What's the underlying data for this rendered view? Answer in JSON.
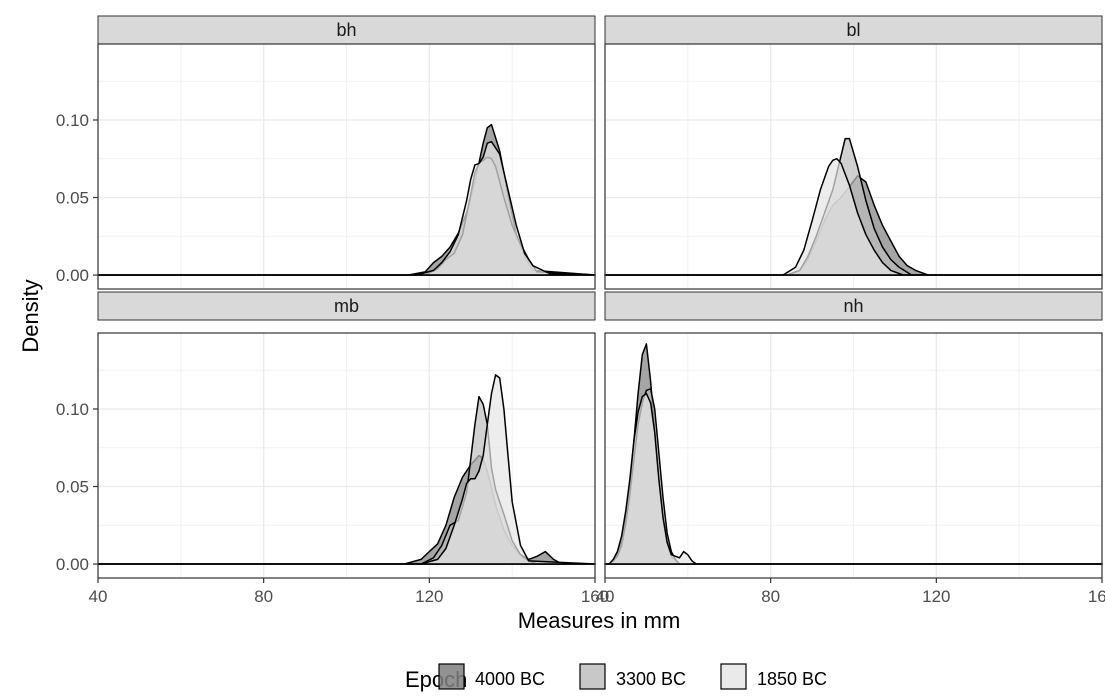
{
  "chart_data": {
    "type": "area",
    "facet_layout": "2x2",
    "xlabel": "Measures in mm",
    "ylabel": "Density",
    "xlim": [
      40,
      160
    ],
    "ylim": [
      -0.009,
      0.149
    ],
    "x_ticks": [
      40,
      80,
      120,
      160
    ],
    "x_tick_labels": [
      "40",
      "80",
      "120",
      "160"
    ],
    "y_ticks": [
      0.0,
      0.05,
      0.1
    ],
    "y_tick_labels": [
      "0.00",
      "0.05",
      "0.10"
    ],
    "grid": true,
    "legend": {
      "title": "Epoch",
      "position": "bottom",
      "entries": [
        {
          "name": "4000 BC",
          "color": "#7f7f7f"
        },
        {
          "name": "3300 BC",
          "color": "#bebebe"
        },
        {
          "name": "1850 BC",
          "color": "#e6e6e6"
        }
      ]
    },
    "panels": [
      {
        "label": "bh",
        "series": [
          {
            "name": "4000 BC",
            "x": [
              40,
              115,
              119,
              121,
              123,
              125,
              127,
              129,
              131,
              133,
              134,
              135,
              137,
              139,
              141,
              143,
              145,
              160
            ],
            "y": [
              0,
              0,
              0.002,
              0.008,
              0.012,
              0.018,
              0.027,
              0.04,
              0.06,
              0.085,
              0.095,
              0.097,
              0.08,
              0.052,
              0.026,
              0.012,
              0.003,
              0
            ]
          },
          {
            "name": "3300 BC",
            "x": [
              40,
              119,
              122,
              124,
              126,
              128,
              130,
              131,
              132,
              133,
              134,
              135,
              136,
              138,
              140,
              142,
              144,
              146,
              160
            ],
            "y": [
              0,
              0,
              0.004,
              0.01,
              0.014,
              0.026,
              0.052,
              0.066,
              0.072,
              0.074,
              0.076,
              0.075,
              0.07,
              0.05,
              0.032,
              0.02,
              0.01,
              0.002,
              0
            ]
          },
          {
            "name": "1850 BC",
            "x": [
              40,
              117,
              121,
              123,
              125,
              127,
              129,
              130,
              131,
              132,
              133,
              134,
              135,
              137,
              139,
              141,
              143,
              145,
              149,
              160
            ],
            "y": [
              0,
              0,
              0.003,
              0.008,
              0.015,
              0.026,
              0.048,
              0.062,
              0.071,
              0.072,
              0.076,
              0.085,
              0.086,
              0.078,
              0.055,
              0.032,
              0.014,
              0.006,
              0.001,
              0
            ]
          }
        ]
      },
      {
        "label": "bl",
        "series": [
          {
            "name": "4000 BC",
            "x": [
              40,
              84,
              87,
              89,
              91,
              93,
              95,
              97,
              99,
              101,
              103,
              105,
              107,
              109,
              111,
              113,
              115,
              118,
              160
            ],
            "y": [
              0,
              0,
              0.003,
              0.01,
              0.022,
              0.035,
              0.045,
              0.05,
              0.057,
              0.064,
              0.06,
              0.045,
              0.032,
              0.022,
              0.012,
              0.006,
              0.003,
              0,
              0
            ]
          },
          {
            "name": "3300 BC",
            "x": [
              40,
              84,
              87,
              89,
              91,
              93,
              95,
              97,
              98,
              99,
              101,
              103,
              105,
              107,
              109,
              111,
              114,
              160
            ],
            "y": [
              0,
              0,
              0.003,
              0.012,
              0.025,
              0.04,
              0.055,
              0.077,
              0.088,
              0.088,
              0.07,
              0.048,
              0.03,
              0.018,
              0.01,
              0.005,
              0,
              0
            ]
          },
          {
            "name": "1850 BC",
            "x": [
              40,
              83,
              86,
              88,
              90,
              92,
              94,
              95,
              96,
              97,
              99,
              101,
              103,
              105,
              107,
              109,
              112,
              160
            ],
            "y": [
              0,
              0,
              0.005,
              0.016,
              0.035,
              0.055,
              0.07,
              0.074,
              0.075,
              0.072,
              0.058,
              0.04,
              0.026,
              0.016,
              0.008,
              0.003,
              0,
              0
            ]
          }
        ]
      },
      {
        "label": "mb",
        "series": [
          {
            "name": "4000 BC",
            "x": [
              40,
              114,
              118,
              120,
              122,
              124,
              126,
              128,
              130,
              132,
              133,
              134,
              136,
              138,
              140,
              142,
              144,
              146,
              148,
              150,
              152,
              160
            ],
            "y": [
              0,
              0,
              0.003,
              0.008,
              0.013,
              0.025,
              0.043,
              0.056,
              0.064,
              0.07,
              0.068,
              0.06,
              0.038,
              0.022,
              0.012,
              0.006,
              0.003,
              0.005,
              0.008,
              0.003,
              0,
              0
            ]
          },
          {
            "name": "3300 BC",
            "x": [
              40,
              118,
              121,
              123,
              125,
              127,
              129,
              130,
              131,
              132,
              133,
              134,
              135,
              136,
              138,
              140,
              142,
              144,
              146,
              160
            ],
            "y": [
              0,
              0,
              0.004,
              0.012,
              0.025,
              0.028,
              0.046,
              0.068,
              0.09,
              0.108,
              0.103,
              0.09,
              0.062,
              0.048,
              0.032,
              0.015,
              0.006,
              0.002,
              0,
              0
            ]
          },
          {
            "name": "1850 BC",
            "x": [
              40,
              118,
              122,
              124,
              126,
              128,
              129,
              130,
              131,
              132,
              133,
              134,
              135,
              136,
              137,
              138,
              139,
              140,
              142,
              144,
              160
            ],
            "y": [
              0,
              0,
              0.003,
              0.01,
              0.025,
              0.042,
              0.052,
              0.055,
              0.055,
              0.06,
              0.07,
              0.09,
              0.11,
              0.122,
              0.12,
              0.1,
              0.07,
              0.04,
              0.012,
              0.002,
              0
            ]
          }
        ]
      },
      {
        "label": "nh",
        "series": [
          {
            "name": "4000 BC",
            "x": [
              40,
              41,
              42,
              43,
              44,
              45,
              46,
              47,
              48,
              49,
              50,
              51,
              52,
              53,
              54,
              55,
              56,
              57,
              58,
              60,
              160
            ],
            "y": [
              0,
              0,
              0.002,
              0.006,
              0.015,
              0.03,
              0.052,
              0.08,
              0.11,
              0.135,
              0.142,
              0.118,
              0.085,
              0.055,
              0.03,
              0.014,
              0.005,
              0.002,
              0,
              0,
              0
            ]
          },
          {
            "name": "3300 BC",
            "x": [
              40,
              41,
              42,
              43,
              44,
              45,
              46,
              47,
              48,
              49,
              50,
              51,
              52,
              53,
              54,
              55,
              56,
              57,
              58,
              60,
              160
            ],
            "y": [
              0,
              0,
              0.002,
              0.005,
              0.012,
              0.026,
              0.045,
              0.068,
              0.09,
              0.104,
              0.112,
              0.113,
              0.1,
              0.072,
              0.043,
              0.02,
              0.008,
              0.003,
              0,
              0,
              0
            ]
          },
          {
            "name": "1850 BC",
            "x": [
              40,
              41,
              42,
              43,
              44,
              45,
              46,
              47,
              48,
              49,
              50,
              51,
              52,
              53,
              54,
              55,
              56,
              58,
              59,
              60,
              61,
              62,
              160
            ],
            "y": [
              0,
              0,
              0.003,
              0.008,
              0.018,
              0.034,
              0.055,
              0.08,
              0.098,
              0.108,
              0.11,
              0.104,
              0.085,
              0.055,
              0.03,
              0.014,
              0.006,
              0.004,
              0.008,
              0.006,
              0.002,
              0,
              0
            ]
          }
        ]
      }
    ]
  }
}
